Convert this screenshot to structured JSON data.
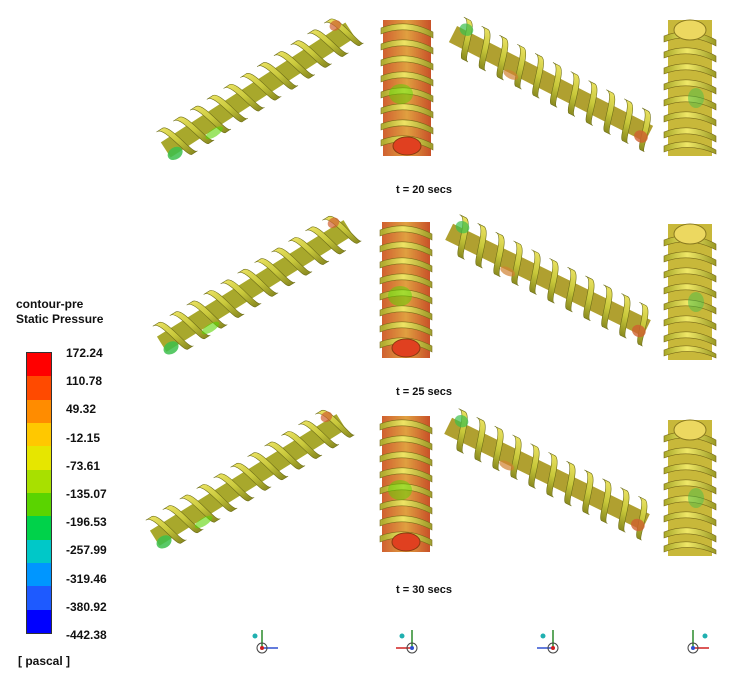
{
  "legend": {
    "title_line1": "contour-pre",
    "title_line2": "Static Pressure",
    "unit": "[ pascal ]",
    "ticks": [
      "172.24",
      "110.78",
      "49.32",
      "-12.15",
      "-73.61",
      "-135.07",
      "-196.53",
      "-257.99",
      "-319.46",
      "-380.92",
      "-442.38"
    ],
    "colors": [
      "#ff0000",
      "#ff4a00",
      "#ff8c00",
      "#ffc800",
      "#e6e600",
      "#a8e000",
      "#5ad400",
      "#00d24a",
      "#00c8c8",
      "#0096ff",
      "#1e5aff",
      "#0000ff"
    ]
  },
  "frames": [
    {
      "label": "t = 20 secs"
    },
    {
      "label": "t = 25 secs"
    },
    {
      "label": "t = 30 secs"
    }
  ],
  "views": [
    {
      "name": "diagonal-left-view"
    },
    {
      "name": "end-view-1"
    },
    {
      "name": "diagonal-right-view"
    },
    {
      "name": "end-view-2"
    }
  ],
  "colors": {
    "helix_base": "#c8c83a",
    "helix_light": "#e8e060",
    "helix_shadow": "#8a8a20",
    "hot": "#e05020",
    "warm": "#d08030",
    "cool": "#3cbf4c"
  }
}
